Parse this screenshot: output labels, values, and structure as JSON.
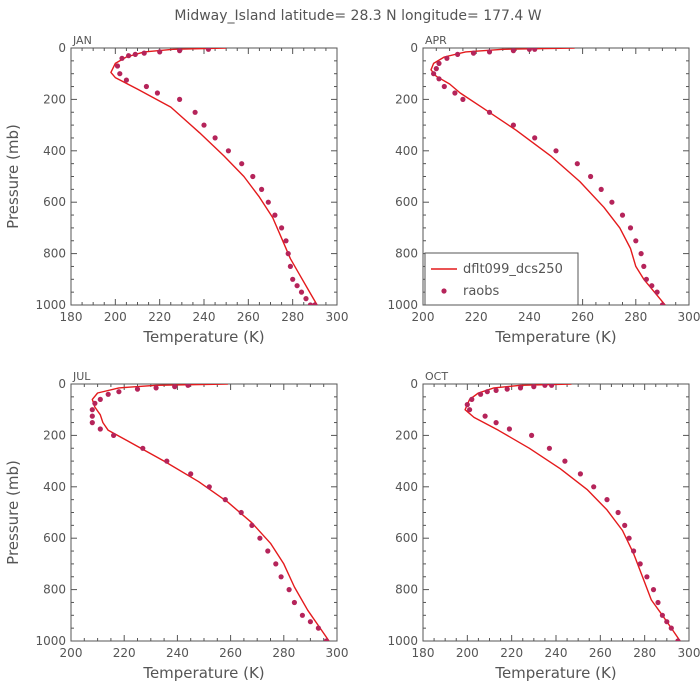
{
  "title": "Midway_Island  latitude= 28.3 N longitude= 177.4 W",
  "colors": {
    "model": "#e41a1c",
    "obs": "#b5245a",
    "axis": "#555555"
  },
  "legend": {
    "model_label": "dflt099_dcs250",
    "obs_label": "raobs"
  },
  "chart_data": [
    {
      "type": "scatter",
      "panel": "JAN",
      "xlabel": "Temperature (K)",
      "ylabel": "Pressure (mb)",
      "xlim": [
        180,
        300
      ],
      "ylim": [
        1000,
        0
      ],
      "xticks": [
        180,
        200,
        220,
        240,
        260,
        280,
        300
      ],
      "yticks": [
        0,
        200,
        400,
        600,
        800,
        1000
      ],
      "series": [
        {
          "name": "dflt099_dcs250",
          "style": "line",
          "temperature": [
            250,
            226,
            213,
            205,
            200,
            198,
            200,
            210,
            225,
            238,
            249,
            258,
            265,
            271,
            275,
            279,
            283,
            287,
            291
          ],
          "pressure": [
            0,
            5,
            15,
            35,
            60,
            95,
            115,
            160,
            230,
            330,
            420,
            500,
            580,
            660,
            740,
            820,
            880,
            940,
            1000
          ]
        },
        {
          "name": "raobs",
          "style": "points",
          "temperature": [
            242,
            229,
            220,
            213,
            209,
            206,
            203,
            201,
            202,
            205,
            214,
            219,
            229,
            236,
            240,
            245,
            251,
            257,
            262,
            266,
            269,
            272,
            275,
            277,
            278,
            279,
            280,
            282,
            284,
            286,
            288,
            290
          ],
          "pressure": [
            5,
            10,
            15,
            20,
            25,
            30,
            40,
            70,
            100,
            125,
            150,
            175,
            200,
            250,
            300,
            350,
            400,
            450,
            500,
            550,
            600,
            650,
            700,
            750,
            800,
            850,
            900,
            925,
            950,
            975,
            1000,
            1000
          ]
        }
      ]
    },
    {
      "type": "scatter",
      "panel": "APR",
      "xlabel": "Temperature (K)",
      "ylabel": "Pressure (mb)",
      "xlim": [
        200,
        300
      ],
      "ylim": [
        1000,
        0
      ],
      "xticks": [
        200,
        220,
        240,
        260,
        280,
        300
      ],
      "yticks": [
        0,
        200,
        400,
        600,
        800,
        1000
      ],
      "series": [
        {
          "name": "dflt099_dcs250",
          "style": "line",
          "temperature": [
            257,
            230,
            216,
            208,
            204,
            203,
            205,
            210,
            214,
            222,
            235,
            248,
            259,
            268,
            274,
            278,
            280,
            283,
            287,
            291
          ],
          "pressure": [
            0,
            5,
            15,
            35,
            60,
            85,
            110,
            140,
            175,
            230,
            320,
            420,
            520,
            620,
            700,
            780,
            850,
            900,
            950,
            1000
          ]
        },
        {
          "name": "raobs",
          "style": "points",
          "temperature": [
            242,
            240,
            234,
            225,
            219,
            213,
            209,
            206,
            205,
            204,
            206,
            208,
            212,
            215,
            225,
            234,
            242,
            250,
            258,
            263,
            267,
            271,
            275,
            278,
            280,
            282,
            283,
            284,
            286,
            288,
            290
          ],
          "pressure": [
            5,
            5,
            10,
            15,
            20,
            25,
            40,
            60,
            80,
            100,
            120,
            150,
            175,
            200,
            250,
            300,
            350,
            400,
            450,
            500,
            550,
            600,
            650,
            700,
            750,
            800,
            850,
            900,
            925,
            950,
            1000
          ]
        }
      ]
    },
    {
      "type": "scatter",
      "panel": "JUL",
      "xlabel": "Temperature (K)",
      "ylabel": "Pressure (mb)",
      "xlim": [
        200,
        300
      ],
      "ylim": [
        1000,
        0
      ],
      "xticks": [
        200,
        220,
        240,
        260,
        280,
        300
      ],
      "yticks": [
        0,
        200,
        400,
        600,
        800,
        1000
      ],
      "series": [
        {
          "name": "dflt099_dcs250",
          "style": "line",
          "temperature": [
            259,
            232,
            218,
            210,
            208,
            209,
            211,
            212,
            214,
            221,
            235,
            248,
            259,
            268,
            275,
            280,
            284,
            289,
            293,
            297
          ],
          "pressure": [
            0,
            5,
            15,
            35,
            60,
            90,
            120,
            150,
            180,
            220,
            300,
            380,
            460,
            540,
            620,
            700,
            790,
            880,
            940,
            1000
          ]
        },
        {
          "name": "raobs",
          "style": "points",
          "temperature": [
            244,
            239,
            232,
            225,
            218,
            214,
            211,
            209,
            208,
            208,
            208,
            211,
            216,
            227,
            236,
            245,
            252,
            258,
            264,
            268,
            271,
            274,
            277,
            279,
            282,
            284,
            287,
            290,
            293,
            296
          ],
          "pressure": [
            5,
            10,
            15,
            20,
            30,
            40,
            60,
            75,
            100,
            125,
            150,
            175,
            200,
            250,
            300,
            350,
            400,
            450,
            500,
            550,
            600,
            650,
            700,
            750,
            800,
            850,
            900,
            925,
            950,
            1000
          ]
        }
      ]
    },
    {
      "type": "scatter",
      "panel": "OCT",
      "xlabel": "Temperature (K)",
      "ylabel": "Pressure (mb)",
      "xlim": [
        180,
        300
      ],
      "ylim": [
        1000,
        0
      ],
      "xticks": [
        180,
        200,
        220,
        240,
        260,
        280,
        300
      ],
      "yticks": [
        0,
        200,
        400,
        600,
        800,
        1000
      ],
      "series": [
        {
          "name": "dflt099_dcs250",
          "style": "line",
          "temperature": [
            247,
            224,
            212,
            205,
            201,
            199,
            203,
            214,
            228,
            242,
            254,
            263,
            270,
            275,
            279,
            283,
            288,
            292,
            296
          ],
          "pressure": [
            0,
            5,
            15,
            35,
            60,
            100,
            130,
            180,
            250,
            330,
            410,
            490,
            570,
            660,
            750,
            840,
            900,
            950,
            1000
          ]
        },
        {
          "name": "raobs",
          "style": "points",
          "temperature": [
            238,
            235,
            230,
            224,
            218,
            213,
            209,
            206,
            202,
            200,
            201,
            208,
            213,
            219,
            229,
            237,
            244,
            251,
            257,
            263,
            268,
            271,
            273,
            275,
            278,
            281,
            284,
            286,
            288,
            290,
            292,
            295
          ],
          "pressure": [
            5,
            5,
            10,
            15,
            20,
            25,
            30,
            40,
            60,
            80,
            100,
            125,
            150,
            175,
            200,
            250,
            300,
            350,
            400,
            450,
            500,
            550,
            600,
            650,
            700,
            750,
            800,
            850,
            900,
            925,
            950,
            1000
          ]
        }
      ]
    }
  ]
}
